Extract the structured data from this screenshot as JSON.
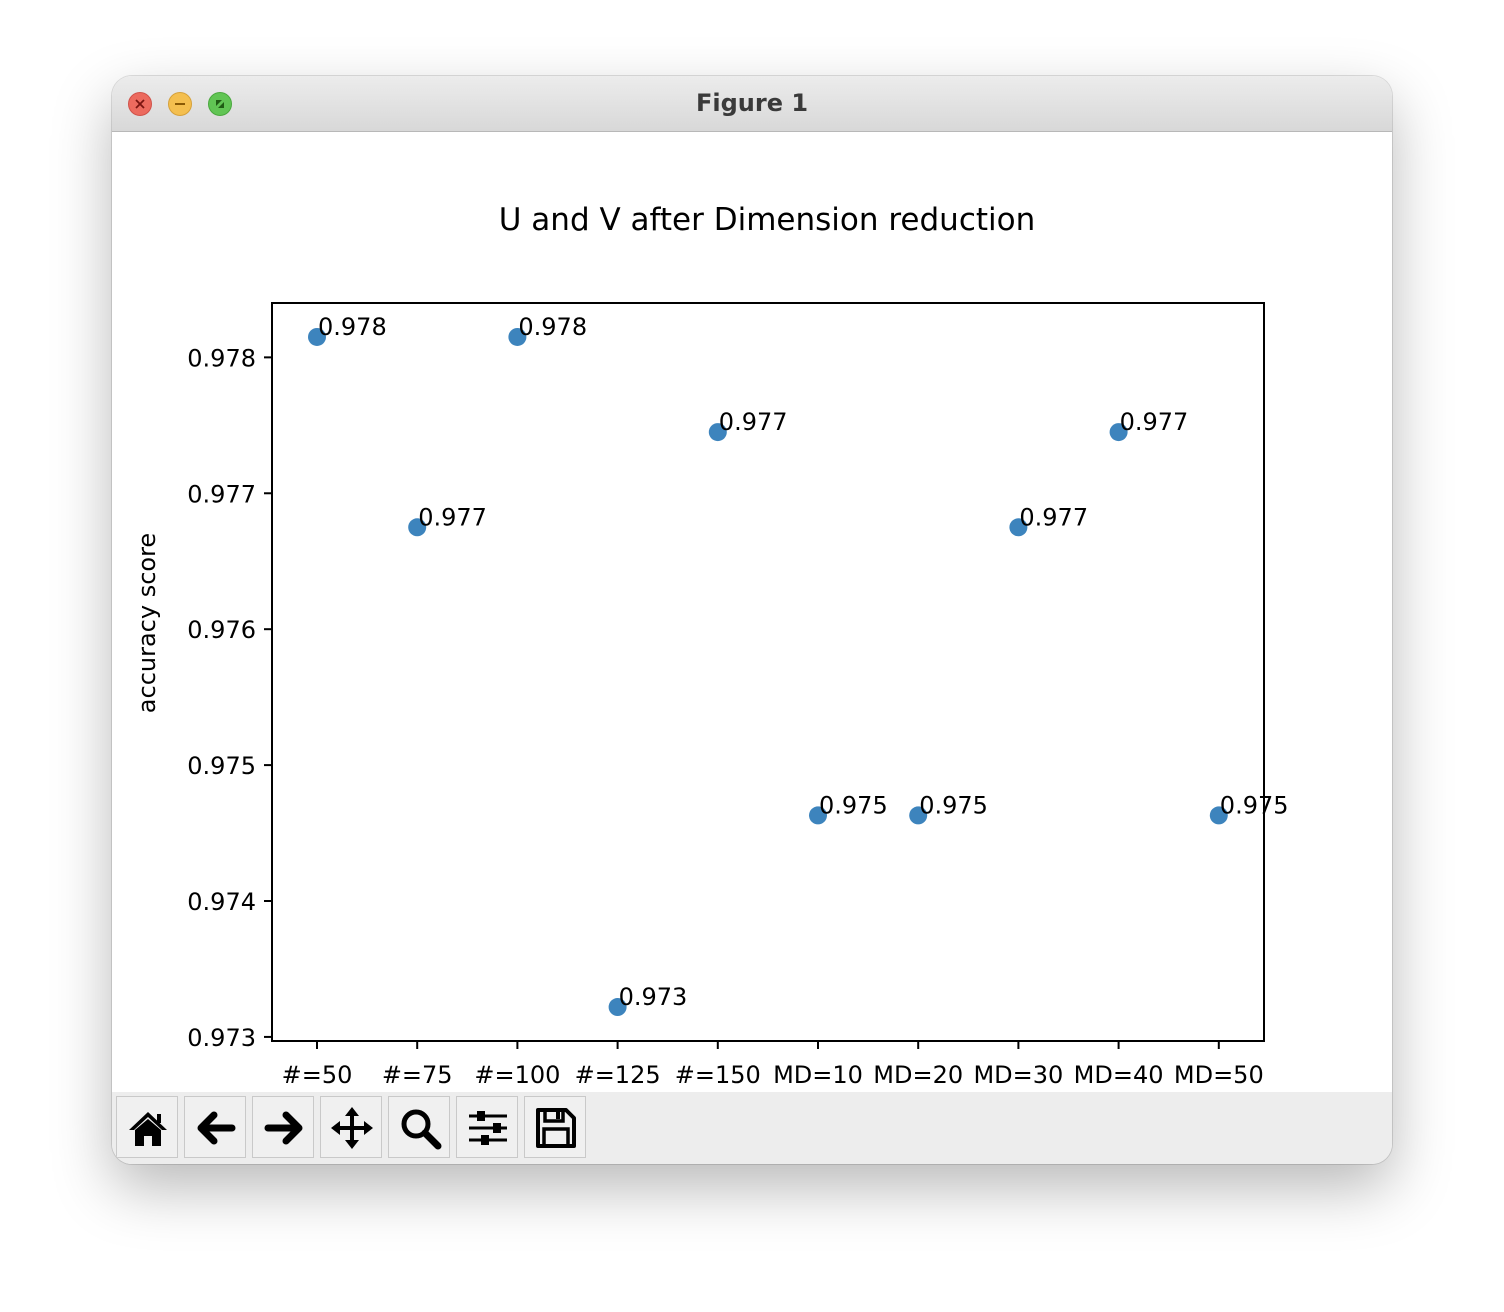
{
  "window": {
    "title": "Figure 1"
  },
  "toolbar": {
    "buttons": [
      {
        "name": "home",
        "icon": "home-icon"
      },
      {
        "name": "back",
        "icon": "arrow-left-icon"
      },
      {
        "name": "forward",
        "icon": "arrow-right-icon"
      },
      {
        "name": "pan",
        "icon": "move-icon"
      },
      {
        "name": "zoom",
        "icon": "magnifier-icon"
      },
      {
        "name": "configure-subplots",
        "icon": "sliders-icon"
      },
      {
        "name": "save",
        "icon": "floppy-disk-icon"
      }
    ]
  },
  "chart_data": {
    "type": "scatter",
    "title": "U and V after Dimension reduction",
    "xlabel": "",
    "ylabel": "accuracy score",
    "categories": [
      "#=50",
      "#=75",
      "#=100",
      "#=125",
      "#=150",
      "MD=10",
      "MD=20",
      "MD=30",
      "MD=40",
      "MD=50"
    ],
    "values": [
      0.97815,
      0.97675,
      0.97815,
      0.97322,
      0.97745,
      0.97463,
      0.97463,
      0.97675,
      0.97745,
      0.97463
    ],
    "point_labels": [
      "0.978",
      "0.977",
      "0.978",
      "0.973",
      "0.977",
      "0.975",
      "0.975",
      "0.977",
      "0.977",
      "0.975"
    ],
    "ylim": [
      0.97297,
      0.9784
    ],
    "yticks": [
      0.973,
      0.974,
      0.975,
      0.976,
      0.977,
      0.978
    ],
    "ytick_labels": [
      "0.973",
      "0.974",
      "0.975",
      "0.976",
      "0.977",
      "0.978"
    ],
    "grid": false,
    "marker_color": "#3d84bd"
  }
}
